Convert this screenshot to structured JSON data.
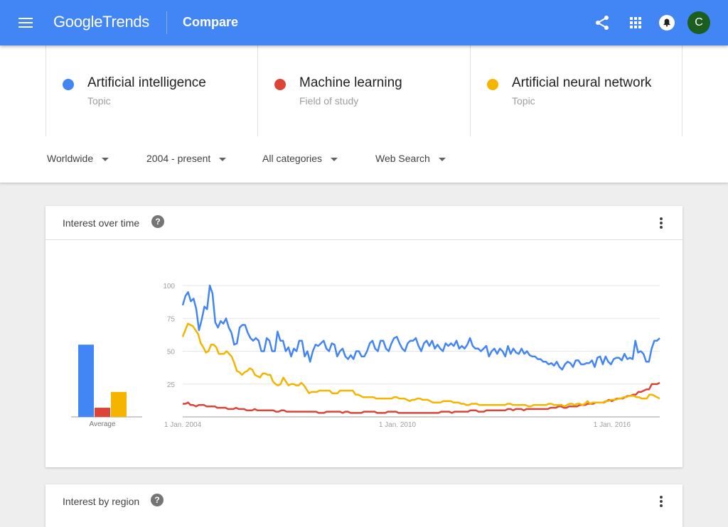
{
  "header": {
    "logo_google": "Google",
    "logo_trends": "Trends",
    "page_title": "Compare",
    "avatar_letter": "C",
    "bg_color": "#4285f4"
  },
  "terms": [
    {
      "name": "Artificial intelligence",
      "type": "Topic",
      "color": "#4285f4"
    },
    {
      "name": "Machine learning",
      "type": "Field of study",
      "color": "#db4437"
    },
    {
      "name": "Artificial neural network",
      "type": "Topic",
      "color": "#f4b400"
    }
  ],
  "filters": {
    "region": "Worldwide",
    "time": "2004 - present",
    "category": "All categories",
    "property": "Web Search"
  },
  "interest_over_time": {
    "title": "Interest over time",
    "average_label": "Average"
  },
  "interest_by_region": {
    "title": "Interest by region"
  },
  "chart_data": {
    "type": "line",
    "x_labels": [
      "1 Jan. 2004",
      "1 Jan. 2010",
      "1 Jan. 2016"
    ],
    "x_range": [
      "2004-01",
      "2017-05"
    ],
    "ylim": [
      0,
      100
    ],
    "yticks": [
      25,
      50,
      75,
      100
    ],
    "grid": true,
    "averages": [
      {
        "name": "Artificial intelligence",
        "value": 55
      },
      {
        "name": "Machine learning",
        "value": 7
      },
      {
        "name": "Artificial neural network",
        "value": 19
      }
    ],
    "series": [
      {
        "name": "Artificial intelligence",
        "color": "#4285f4",
        "values": [
          85,
          92,
          95,
          88,
          90,
          82,
          66,
          74,
          84,
          82,
          100,
          94,
          72,
          68,
          73,
          71,
          75,
          68,
          64,
          55,
          56,
          68,
          70,
          70,
          64,
          60,
          58,
          60,
          58,
          50,
          50,
          60,
          58,
          50,
          50,
          65,
          58,
          58,
          50,
          53,
          46,
          52,
          50,
          58,
          58,
          46,
          50,
          42,
          50,
          55,
          54,
          56,
          58,
          52,
          50,
          56,
          55,
          46,
          50,
          52,
          46,
          44,
          47,
          44,
          50,
          50,
          46,
          46,
          50,
          56,
          58,
          52,
          50,
          58,
          58,
          52,
          50,
          56,
          60,
          61,
          56,
          52,
          50,
          56,
          58,
          58,
          60,
          54,
          50,
          56,
          58,
          54,
          58,
          52,
          55,
          52,
          50,
          56,
          54,
          56,
          54,
          58,
          52,
          54,
          52,
          55,
          60,
          54,
          52,
          52,
          50,
          52,
          54,
          46,
          50,
          52,
          48,
          52,
          50,
          46,
          54,
          48,
          52,
          49,
          48,
          52,
          48,
          50,
          47,
          46,
          46,
          44,
          44,
          42,
          42,
          40,
          41,
          39,
          42,
          38,
          36,
          40,
          42,
          41,
          38,
          43,
          43,
          40,
          40,
          41,
          41,
          43,
          38,
          45,
          46,
          40,
          46,
          42,
          40,
          44,
          45,
          45,
          43,
          48,
          44,
          45,
          44,
          58,
          49,
          50,
          48,
          42,
          42,
          52,
          58,
          58,
          60
        ]
      },
      {
        "name": "Machine learning",
        "color": "#db4437",
        "values": [
          10,
          10,
          11,
          9,
          9,
          8,
          9,
          9,
          9,
          8,
          8,
          8,
          8,
          7,
          7,
          7,
          7,
          6,
          6,
          6,
          7,
          6,
          6,
          6,
          5,
          5,
          5,
          6,
          5,
          5,
          5,
          5,
          5,
          5,
          5,
          4,
          4,
          5,
          5,
          4,
          4,
          4,
          4,
          4,
          4,
          4,
          4,
          4,
          4,
          4,
          4,
          3,
          3,
          3,
          4,
          4,
          4,
          4,
          4,
          4,
          3,
          4,
          4,
          3,
          3,
          3,
          3,
          3,
          4,
          4,
          4,
          4,
          4,
          3,
          3,
          3,
          3,
          4,
          4,
          4,
          4,
          3,
          3,
          3,
          3,
          3,
          3,
          3,
          3,
          3,
          3,
          3,
          3,
          3,
          3,
          3,
          3,
          4,
          4,
          4,
          4,
          3,
          4,
          4,
          4,
          4,
          4,
          4,
          5,
          5,
          5,
          4,
          4,
          4,
          5,
          5,
          5,
          5,
          5,
          5,
          5,
          5,
          6,
          6,
          5,
          6,
          6,
          6,
          5,
          6,
          6,
          6,
          6,
          6,
          6,
          6,
          6,
          6,
          7,
          7,
          7,
          8,
          8,
          7,
          7,
          8,
          8,
          8,
          8,
          9,
          9,
          9,
          10,
          10,
          10,
          11,
          11,
          11,
          11,
          12,
          13,
          12,
          13,
          14,
          14,
          14,
          15,
          16,
          16,
          17,
          17,
          19,
          19,
          20,
          21,
          21,
          25,
          25,
          25,
          26
        ]
      },
      {
        "name": "Artificial neural network",
        "color": "#f4b400",
        "values": [
          61,
          66,
          71,
          70,
          69,
          66,
          63,
          56,
          53,
          49,
          50,
          55,
          55,
          53,
          48,
          48,
          48,
          50,
          48,
          46,
          41,
          35,
          34,
          32,
          34,
          35,
          37,
          36,
          32,
          31,
          30,
          33,
          33,
          32,
          32,
          27,
          25,
          24,
          25,
          30,
          27,
          24,
          25,
          25,
          24,
          24,
          26,
          24,
          21,
          18,
          19,
          19,
          19,
          20,
          20,
          20,
          20,
          20,
          18,
          18,
          18,
          20,
          20,
          20,
          20,
          20,
          20,
          17,
          17,
          16,
          15,
          15,
          15,
          15,
          15,
          14,
          14,
          14,
          14,
          14,
          14,
          14,
          15,
          15,
          14,
          14,
          14,
          13,
          12,
          13,
          13,
          14,
          14,
          13,
          13,
          13,
          12,
          11,
          11,
          11,
          11,
          12,
          12,
          12,
          12,
          11,
          11,
          11,
          10,
          10,
          9,
          9,
          10,
          10,
          10,
          9,
          9,
          9,
          9,
          9,
          9,
          9,
          9,
          9,
          9,
          9,
          10,
          10,
          9,
          9,
          9,
          9,
          9,
          9,
          8,
          8,
          9,
          9,
          9,
          9,
          9,
          9,
          10,
          10,
          9,
          9,
          9,
          9,
          8,
          9,
          10,
          10,
          9,
          10,
          10,
          9,
          10,
          12,
          10,
          11,
          11,
          11,
          11,
          11,
          12,
          12,
          13,
          13,
          13,
          14,
          14,
          15,
          15,
          16,
          16,
          16,
          15,
          15,
          14,
          14,
          14,
          17,
          17,
          16,
          15,
          14
        ]
      }
    ]
  }
}
